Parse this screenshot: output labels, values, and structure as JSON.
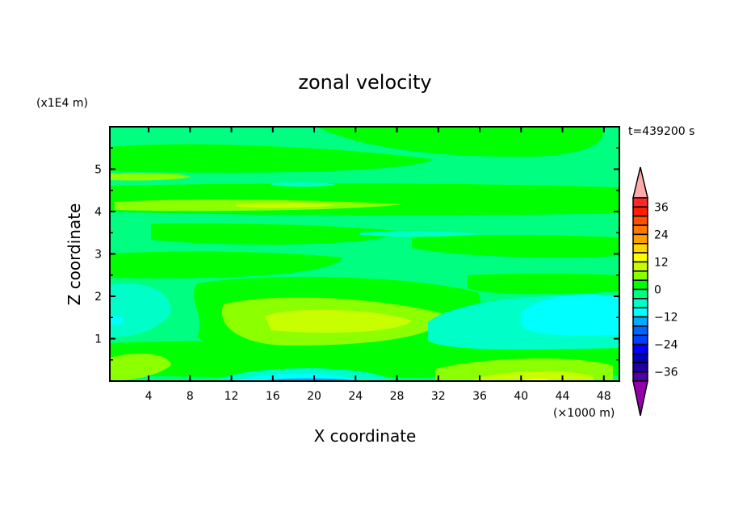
{
  "chart_data": {
    "type": "heatmap",
    "subtype": "filled-contour",
    "title": "zonal velocity",
    "xlabel": "X coordinate",
    "ylabel": "Z coordinate",
    "x_unit_label": "(×1000 m)",
    "y_unit_label": "(x1E4 m)",
    "time_label": "t=439200 s",
    "xlim": [
      0.25,
      49.5
    ],
    "ylim": [
      0,
      6
    ],
    "x_ticks": [
      4,
      8,
      12,
      16,
      20,
      24,
      28,
      32,
      36,
      40,
      44,
      48
    ],
    "y_ticks": [
      1,
      2,
      3,
      4,
      5
    ],
    "colorbar": {
      "levels": [
        40,
        36,
        32,
        28,
        24,
        20,
        16,
        12,
        8,
        4,
        0,
        -4,
        -8,
        -12,
        -16,
        -20,
        -24,
        -28,
        -32,
        -36,
        -40
      ],
      "tick_labels": [
        "36",
        "24",
        "12",
        "0",
        "−12",
        "−24",
        "−36"
      ],
      "tick_values": [
        36,
        24,
        12,
        0,
        -12,
        -24,
        -36
      ],
      "colors": [
        "#ff2828",
        "#ff2000",
        "#ff5000",
        "#ff7800",
        "#ffa000",
        "#ffd700",
        "#ffff00",
        "#c8ff00",
        "#8cff00",
        "#00ff00",
        "#00ff80",
        "#00ffc8",
        "#00ffff",
        "#00aaff",
        "#0064ff",
        "#0040ff",
        "#0000ff",
        "#0000b4",
        "#1e00a0",
        "#5000a0"
      ],
      "over_color": "#ffaaaa",
      "under_color": "#9600aa",
      "extend": "both"
    },
    "field_summary": "mostly 0 to 4 and -4 to 0; positive 4-12 blob near x=16-28,z=1-2; negative -8 to -16 near bottom x=14-26; positive 8-12 near bottom x=38-46"
  }
}
